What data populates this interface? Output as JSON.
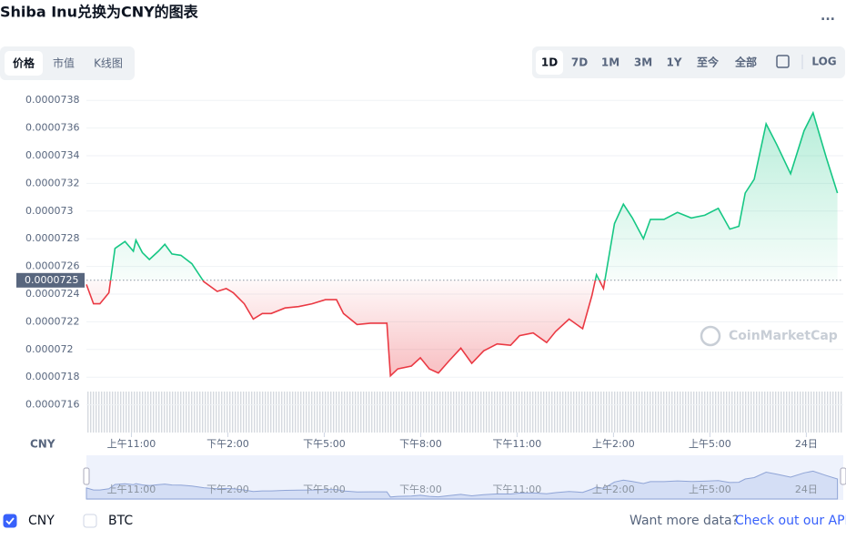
{
  "chart_data": {
    "type": "line",
    "title": "Shiba Inu兑换为CNY的图表",
    "menu": "...",
    "tabs": [
      "价格",
      "市值",
      "K线图"
    ],
    "ranges": [
      "1D",
      "7D",
      "1M",
      "3M",
      "1Y",
      "至今",
      "全部"
    ],
    "log_button": "LOG",
    "unit_label": "CNY",
    "x": [
      9.6,
      9.82,
      10.02,
      10.3,
      10.49,
      10.8,
      11.06,
      11.14,
      11.34,
      11.56,
      11.84,
      12.04,
      12.26,
      12.54,
      12.88,
      13.25,
      13.67,
      13.95,
      14.17,
      14.51,
      14.79,
      15.07,
      15.35,
      15.78,
      16.2,
      16.62,
      17.04,
      17.38,
      17.6,
      18.02,
      18.44,
      18.95,
      19.06,
      19.29,
      19.71,
      19.99,
      20.27,
      20.55,
      20.89,
      21.25,
      21.59,
      21.96,
      22.38,
      22.8,
      23.08,
      23.5,
      23.92,
      24.2,
      24.62,
      25.04,
      25.33,
      25.47,
      25.69,
      26.03,
      26.31,
      26.59,
      26.93,
      27.15,
      27.57,
      27.99,
      28.42,
      28.84,
      29.26,
      29.62,
      29.9,
      30.1,
      30.38,
      30.75,
      31.08,
      31.51,
      31.93,
      32.21,
      32.63,
      32.97
    ],
    "series": [
      {
        "name": "CNY",
        "color": "#16c784",
        "below_color": "#ea3943",
        "values": [
          7.247e-05,
          7.233e-05,
          7.233e-05,
          7.241e-05,
          7.273e-05,
          7.278e-05,
          7.271e-05,
          7.279e-05,
          7.27e-05,
          7.265e-05,
          7.271e-05,
          7.276e-05,
          7.269e-05,
          7.268e-05,
          7.262e-05,
          7.249e-05,
          7.242e-05,
          7.244e-05,
          7.241e-05,
          7.233e-05,
          7.222e-05,
          7.226e-05,
          7.226e-05,
          7.23e-05,
          7.231e-05,
          7.233e-05,
          7.236e-05,
          7.236e-05,
          7.226e-05,
          7.218e-05,
          7.219e-05,
          7.219e-05,
          7.181e-05,
          7.186e-05,
          7.188e-05,
          7.194e-05,
          7.186e-05,
          7.183e-05,
          7.192e-05,
          7.201e-05,
          7.19e-05,
          7.199e-05,
          7.204e-05,
          7.203e-05,
          7.21e-05,
          7.212e-05,
          7.205e-05,
          7.213e-05,
          7.222e-05,
          7.215e-05,
          7.239e-05,
          7.254e-05,
          7.244e-05,
          7.291e-05,
          7.305e-05,
          7.295e-05,
          7.28e-05,
          7.294e-05,
          7.294e-05,
          7.299e-05,
          7.295e-05,
          7.297e-05,
          7.302e-05,
          7.287e-05,
          7.289e-05,
          7.313e-05,
          7.323e-05,
          7.363e-05,
          7.348e-05,
          7.327e-05,
          7.358e-05,
          7.371e-05,
          7.338e-05,
          7.313e-05
        ]
      }
    ],
    "baseline": 7.25e-05,
    "ylim": [
      7.14e-05,
      7.39e-05
    ],
    "yticks": [
      7.16e-05,
      7.18e-05,
      7.2e-05,
      7.22e-05,
      7.24e-05,
      7.26e-05,
      7.28e-05,
      7.3e-05,
      7.32e-05,
      7.34e-05,
      7.36e-05,
      7.38e-05
    ],
    "xlim": [
      9.6,
      33.15
    ],
    "xticks": [
      {
        "value": 11,
        "label": "上午11:00"
      },
      {
        "value": 14,
        "label": "下午2:00"
      },
      {
        "value": 17,
        "label": "下午5:00"
      },
      {
        "value": 20,
        "label": "下午8:00"
      },
      {
        "value": 23,
        "label": "下午11:00"
      },
      {
        "value": 26,
        "label": "上午2:00"
      },
      {
        "value": 29,
        "label": "上午5:00"
      },
      {
        "value": 32,
        "label": "24日"
      }
    ],
    "grid": true,
    "watermark": "CoinMarketCap",
    "legend": [
      {
        "name": "CNY",
        "checked": true
      },
      {
        "name": "BTC",
        "checked": false
      }
    ],
    "more_data": "Want more data?",
    "api_link": "Check out our API"
  }
}
